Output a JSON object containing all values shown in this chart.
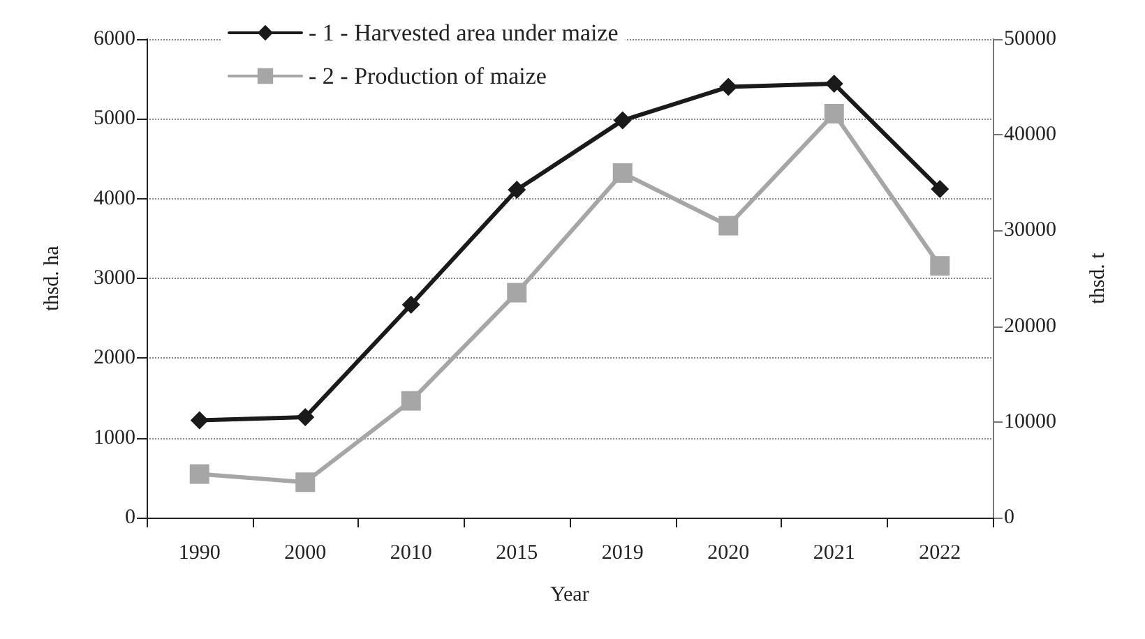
{
  "chart_data": {
    "type": "line",
    "xlabel": "Year",
    "ylabel": "thsd. ha",
    "y2label": "thsd. t",
    "categories": [
      "1990",
      "2000",
      "2010",
      "2015",
      "2019",
      "2020",
      "2021",
      "2022"
    ],
    "series": [
      {
        "name": "- 1 - Harvested area under maize",
        "color": "#1a1a1a",
        "marker": "diamond",
        "values": [
          1220,
          1260,
          2670,
          4110,
          4980,
          5400,
          5440,
          4120
        ]
      },
      {
        "name": "- 2 - Production of maize",
        "color": "#a6a6a6",
        "marker": "square",
        "axis": "y2",
        "values": [
          4550,
          3700,
          12200,
          23500,
          36000,
          30500,
          42200,
          26300
        ]
      }
    ],
    "ylim": [
      0,
      6000
    ],
    "yticks": [
      0,
      1000,
      2000,
      3000,
      4000,
      5000,
      6000
    ],
    "y2lim": [
      0,
      50000
    ],
    "y2ticks": [
      0,
      10000,
      20000,
      30000,
      40000,
      50000
    ],
    "grid": "y",
    "legend": "top",
    "line_style": "solid"
  }
}
